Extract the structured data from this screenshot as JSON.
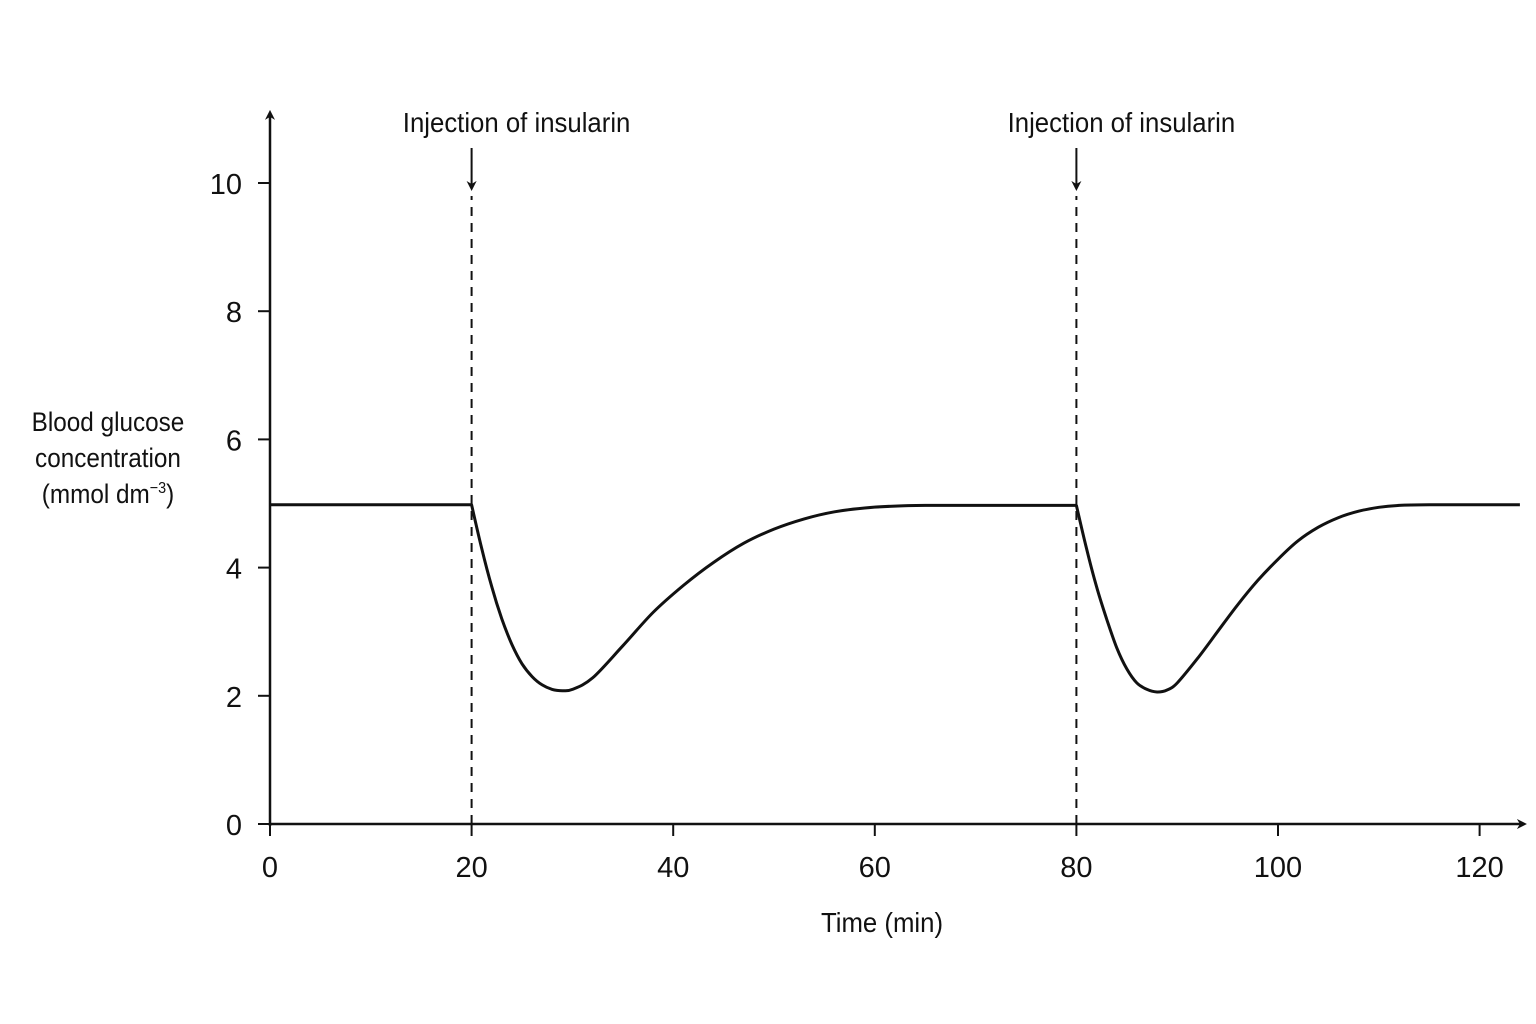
{
  "chart_data": {
    "type": "line",
    "title": "",
    "xlabel": "Time (min)",
    "ylabel": {
      "line1": "Blood glucose",
      "line2": "concentration",
      "line3_prefix": "(mmol dm",
      "line3_sup": "−3",
      "line3_suffix": ")"
    },
    "xlim": [
      0,
      124
    ],
    "ylim": [
      0,
      11
    ],
    "x_ticks": [
      0,
      20,
      40,
      60,
      80,
      100,
      120
    ],
    "x_tick_labels": [
      "0",
      "20",
      "40",
      "60",
      "80",
      "100",
      "120"
    ],
    "y_ticks": [
      0,
      2,
      4,
      6,
      8,
      10
    ],
    "y_tick_labels": [
      "0",
      "2",
      "4",
      "6",
      "8",
      "10"
    ],
    "grid": false,
    "series": [
      {
        "x": [
          0,
          20,
          21,
          22,
          23,
          24,
          25,
          26,
          27,
          28,
          29,
          30,
          32,
          35,
          38,
          41,
          44,
          47,
          50,
          53,
          56,
          59,
          62,
          65,
          70,
          75,
          80,
          81,
          82,
          83,
          84,
          85,
          86,
          87,
          88,
          89,
          90,
          92,
          94,
          96,
          98,
          100,
          102,
          104,
          106,
          108,
          110,
          112,
          115,
          120,
          124
        ],
        "y": [
          4.98,
          4.98,
          4.3,
          3.7,
          3.2,
          2.8,
          2.5,
          2.3,
          2.17,
          2.1,
          2.08,
          2.1,
          2.28,
          2.78,
          3.3,
          3.72,
          4.08,
          4.38,
          4.6,
          4.76,
          4.87,
          4.93,
          4.96,
          4.97,
          4.97,
          4.97,
          4.97,
          4.3,
          3.7,
          3.2,
          2.75,
          2.42,
          2.2,
          2.1,
          2.06,
          2.09,
          2.2,
          2.58,
          3.0,
          3.42,
          3.8,
          4.13,
          4.42,
          4.63,
          4.78,
          4.88,
          4.94,
          4.97,
          4.98,
          4.98,
          4.98
        ]
      }
    ],
    "annotations": [
      {
        "x": 20,
        "text": "Injection of insularin"
      },
      {
        "x": 80,
        "text": "Injection of insularin"
      }
    ]
  }
}
